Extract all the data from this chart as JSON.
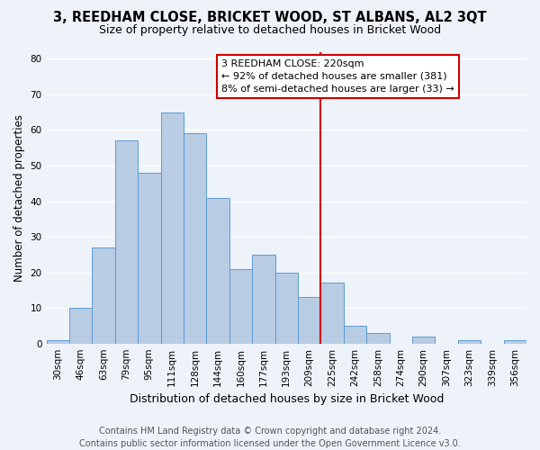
{
  "title": "3, REEDHAM CLOSE, BRICKET WOOD, ST ALBANS, AL2 3QT",
  "subtitle": "Size of property relative to detached houses in Bricket Wood",
  "xlabel": "Distribution of detached houses by size in Bricket Wood",
  "ylabel": "Number of detached properties",
  "bar_labels": [
    "30sqm",
    "46sqm",
    "63sqm",
    "79sqm",
    "95sqm",
    "111sqm",
    "128sqm",
    "144sqm",
    "160sqm",
    "177sqm",
    "193sqm",
    "209sqm",
    "225sqm",
    "242sqm",
    "258sqm",
    "274sqm",
    "290sqm",
    "307sqm",
    "323sqm",
    "339sqm",
    "356sqm"
  ],
  "bar_values": [
    1,
    10,
    27,
    57,
    48,
    65,
    59,
    41,
    21,
    25,
    20,
    13,
    17,
    5,
    3,
    0,
    2,
    0,
    1,
    0,
    1
  ],
  "bar_color": "#b8cce4",
  "bar_edgecolor": "#5b9bd5",
  "background_color": "#eef2f9",
  "grid_color": "#ffffff",
  "vline_x_index": 11.5,
  "vline_color": "#cc0000",
  "ylim": [
    0,
    82
  ],
  "yticks": [
    0,
    10,
    20,
    30,
    40,
    50,
    60,
    70,
    80
  ],
  "annotation_title": "3 REEDHAM CLOSE: 220sqm",
  "annotation_line1": "← 92% of detached houses are smaller (381)",
  "annotation_line2": "8% of semi-detached houses are larger (33) →",
  "annotation_box_facecolor": "#ffffff",
  "annotation_box_edgecolor": "#cc0000",
  "footer_line1": "Contains HM Land Registry data © Crown copyright and database right 2024.",
  "footer_line2": "Contains public sector information licensed under the Open Government Licence v3.0.",
  "title_fontsize": 10.5,
  "subtitle_fontsize": 9,
  "xlabel_fontsize": 9,
  "ylabel_fontsize": 8.5,
  "tick_fontsize": 7.5,
  "annotation_fontsize": 8,
  "footer_fontsize": 7
}
